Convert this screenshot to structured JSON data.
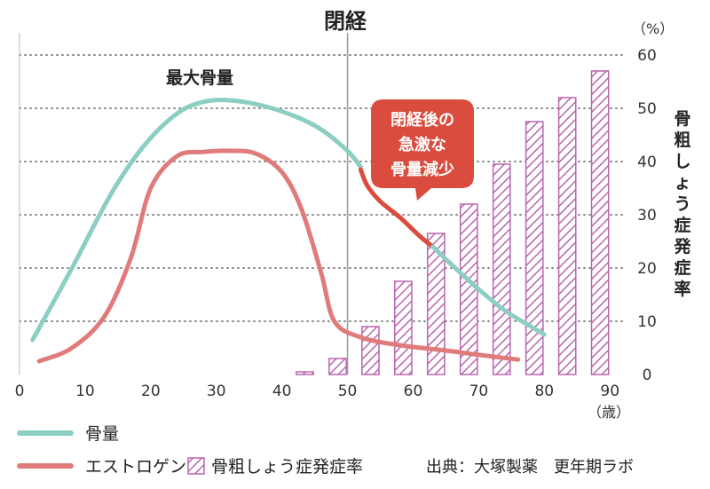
{
  "chart_data": {
    "type": "line",
    "title": "閉経",
    "x": {
      "ticks": [
        0,
        10,
        20,
        30,
        40,
        50,
        60,
        70,
        80,
        90
      ],
      "unit": "（歳）",
      "range": [
        0,
        92
      ]
    },
    "y_right": {
      "ticks": [
        0,
        10,
        20,
        30,
        40,
        50,
        60
      ],
      "unit": "（%）",
      "label": "骨粗しょう症発症率",
      "range": [
        0,
        60
      ]
    },
    "grid": true,
    "series": [
      {
        "name": "骨量",
        "kind": "line",
        "color": "#8ccfc2",
        "points": [
          [
            2,
            6.5
          ],
          [
            8,
            20
          ],
          [
            14,
            34
          ],
          [
            19,
            43
          ],
          [
            24,
            49
          ],
          [
            28,
            51.2
          ],
          [
            32,
            51.5
          ],
          [
            37,
            50.5
          ],
          [
            42,
            48.5
          ],
          [
            46,
            46
          ],
          [
            50,
            42
          ],
          [
            52,
            39
          ]
        ]
      },
      {
        "name": "閉経後の急激な骨量減少",
        "kind": "line",
        "color": "#d94c3e",
        "points": [
          [
            52,
            38.5
          ],
          [
            53,
            35.5
          ],
          [
            55,
            32.5
          ],
          [
            58,
            29.5
          ],
          [
            61,
            26
          ],
          [
            63,
            24
          ]
        ]
      },
      {
        "name": "骨量 (閉経後)",
        "kind": "line",
        "color": "#8ccfc2",
        "points": [
          [
            63,
            24
          ],
          [
            66,
            20.5
          ],
          [
            70,
            16
          ],
          [
            74,
            12
          ],
          [
            78,
            9
          ],
          [
            80,
            7.5
          ]
        ]
      },
      {
        "name": "エストロゲン",
        "kind": "line",
        "color": "#e07b7b",
        "points": [
          [
            3,
            2.5
          ],
          [
            8,
            5
          ],
          [
            13,
            11
          ],
          [
            17,
            22
          ],
          [
            20,
            35
          ],
          [
            24,
            41
          ],
          [
            28,
            41.8
          ],
          [
            32,
            42
          ],
          [
            36,
            41.5
          ],
          [
            40,
            38
          ],
          [
            43,
            31
          ],
          [
            46,
            19
          ],
          [
            48,
            10
          ],
          [
            52,
            7
          ],
          [
            58,
            5.5
          ],
          [
            65,
            4.5
          ],
          [
            70,
            3.7
          ],
          [
            76,
            2.8
          ]
        ]
      },
      {
        "name": "骨粗しょう症発症率",
        "kind": "bar",
        "color": "#b866ae",
        "x": [
          43.5,
          48.5,
          53.5,
          58.5,
          63.5,
          68.5,
          73.5,
          78.5,
          83.5,
          88.5
        ],
        "values": [
          0.5,
          3,
          9,
          17.5,
          26.5,
          32,
          39.5,
          47.5,
          52,
          57
        ],
        "bar_width_units": 2.6
      }
    ],
    "annotations": {
      "menopause_age": 50,
      "peak_label": "最大骨量",
      "bubble_lines": [
        "閉経後の",
        "急激な",
        "骨量減少"
      ]
    },
    "legend": {
      "placement": "bottom",
      "items": [
        {
          "label": "骨量",
          "kind": "line",
          "color": "#8ccfc2"
        },
        {
          "label": "エストロゲン",
          "kind": "line",
          "color": "#e07b7b"
        },
        {
          "label": "骨粗しょう症発症率",
          "kind": "hatch",
          "color": "#b866ae"
        }
      ]
    },
    "source": "出典：大塚製薬　更年期ラボ"
  }
}
